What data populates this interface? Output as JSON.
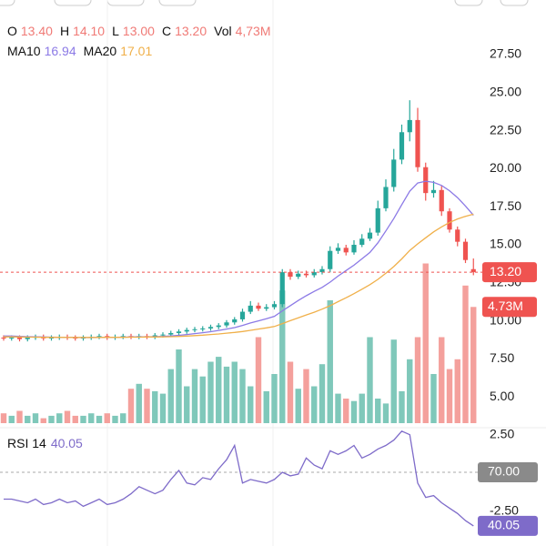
{
  "header": {
    "ohlc": [
      {
        "label": "O",
        "value": "13.40"
      },
      {
        "label": "H",
        "value": "14.10"
      },
      {
        "label": "L",
        "value": "13.00"
      },
      {
        "label": "C",
        "value": "13.20"
      },
      {
        "label": "Vol",
        "value": "4,73M"
      }
    ],
    "ma": [
      {
        "label": "MA10",
        "value": "16.94"
      },
      {
        "label": "MA20",
        "value": "17.01"
      }
    ],
    "rsi": {
      "label": "RSI 14",
      "value": "40.05"
    }
  },
  "chart_data": {
    "type": "candlestick",
    "open": [
      8.9,
      8.85,
      8.9,
      8.8,
      8.9,
      8.95,
      8.85,
      8.9,
      8.95,
      8.9,
      8.85,
      8.9,
      8.95,
      9.0,
      8.9,
      8.95,
      9.0,
      8.95,
      9.0,
      8.95,
      9.05,
      9.1,
      9.2,
      9.3,
      9.4,
      9.45,
      9.5,
      9.6,
      9.7,
      9.9,
      10.1,
      10.6,
      11.0,
      10.8,
      10.9,
      11.1,
      13.2,
      12.9,
      13.1,
      13.0,
      13.2,
      13.4,
      14.6,
      14.8,
      14.5,
      15.0,
      15.4,
      15.8,
      17.4,
      18.8,
      20.6,
      22.4,
      23.2,
      20.1,
      18.4,
      18.6,
      17.2,
      16.0,
      15.2,
      13.4
    ],
    "high": [
      9.05,
      9.05,
      9.05,
      9.05,
      9.1,
      9.1,
      9.05,
      9.1,
      9.1,
      9.05,
      9.05,
      9.1,
      9.15,
      9.15,
      9.1,
      9.15,
      9.15,
      9.15,
      9.15,
      9.2,
      9.25,
      9.35,
      9.45,
      9.55,
      9.6,
      9.65,
      9.75,
      9.85,
      10.05,
      10.25,
      10.8,
      11.3,
      11.2,
      11.1,
      11.3,
      13.4,
      13.4,
      13.3,
      13.3,
      13.4,
      13.6,
      14.9,
      15.1,
      15.0,
      15.3,
      15.7,
      16.1,
      17.9,
      19.3,
      21.3,
      22.9,
      24.5,
      24.0,
      20.4,
      19.2,
      18.9,
      17.4,
      16.2,
      15.4,
      14.1
    ],
    "low": [
      8.7,
      8.7,
      8.65,
      8.65,
      8.75,
      8.7,
      8.7,
      8.75,
      8.75,
      8.7,
      8.7,
      8.75,
      8.8,
      8.75,
      8.75,
      8.8,
      8.8,
      8.8,
      8.8,
      8.8,
      8.9,
      8.95,
      9.05,
      9.15,
      9.25,
      9.3,
      9.35,
      9.45,
      9.55,
      9.75,
      9.95,
      10.45,
      10.65,
      10.65,
      10.75,
      10.9,
      12.7,
      12.75,
      12.85,
      12.85,
      13.05,
      13.2,
      14.4,
      14.3,
      14.35,
      14.85,
      15.25,
      15.6,
      17.2,
      18.5,
      20.3,
      21.8,
      19.8,
      17.9,
      18.1,
      16.9,
      15.8,
      14.9,
      13.8,
      13.0
    ],
    "close": [
      8.85,
      8.9,
      8.8,
      8.9,
      8.95,
      8.85,
      8.9,
      8.95,
      8.9,
      8.85,
      8.9,
      8.95,
      9.0,
      8.9,
      8.95,
      9.0,
      8.95,
      9.0,
      8.95,
      9.05,
      9.1,
      9.2,
      9.3,
      9.4,
      9.45,
      9.5,
      9.6,
      9.7,
      9.9,
      10.1,
      10.6,
      11.0,
      10.8,
      10.9,
      11.1,
      13.2,
      12.9,
      13.1,
      13.0,
      13.2,
      13.4,
      14.6,
      14.8,
      14.5,
      15.0,
      15.4,
      15.8,
      17.4,
      18.8,
      20.6,
      22.4,
      23.2,
      20.1,
      18.4,
      18.6,
      17.2,
      16.0,
      15.2,
      14.0,
      13.2
    ],
    "up_color": "#26a69a",
    "down_color": "#ef5350",
    "ylim": [
      -2.5,
      27.5
    ],
    "yticks": [
      {
        "value": 27.5,
        "label": "27.50"
      },
      {
        "value": 25,
        "label": "25.00"
      },
      {
        "value": 22.5,
        "label": "22.50"
      },
      {
        "value": 20,
        "label": "20.00"
      },
      {
        "value": 17.5,
        "label": "17.50"
      },
      {
        "value": 15,
        "label": "15.00"
      },
      {
        "value": 12.5,
        "label": "12.50"
      },
      {
        "value": 10,
        "label": "10.00"
      },
      {
        "value": 7.5,
        "label": "7.50"
      },
      {
        "value": 5,
        "label": "5.00"
      },
      {
        "value": 2.5,
        "label": "2.50"
      },
      {
        "value": -2.5,
        "label": "-2.50"
      }
    ],
    "last_price": {
      "value": 13.2,
      "label": "13.20"
    },
    "volume": {
      "values": [
        0.4,
        0.3,
        0.5,
        0.3,
        0.4,
        0.2,
        0.3,
        0.4,
        0.5,
        0.3,
        0.3,
        0.4,
        0.3,
        0.4,
        0.3,
        0.4,
        1.4,
        1.6,
        1.4,
        1.3,
        1.2,
        2.2,
        3.0,
        1.5,
        2.2,
        1.9,
        2.5,
        2.7,
        2.3,
        2.5,
        2.2,
        1.5,
        3.5,
        1.3,
        2.0,
        5.4,
        2.5,
        1.4,
        2.2,
        1.5,
        2.4,
        5.0,
        1.2,
        1.0,
        0.9,
        1.2,
        3.5,
        1.0,
        0.8,
        3.4,
        1.3,
        2.6,
        3.5,
        6.5,
        2.0,
        3.5,
        2.2,
        2.6,
        5.6,
        4.73
      ],
      "ylim": [
        0,
        10
      ],
      "up_color": "#7fc8ba",
      "down_color": "#f4a09c",
      "last": {
        "value": 4.73,
        "label": "4.73M"
      }
    },
    "ma": [
      {
        "color": "#8c7ae6",
        "values": [
          9.0,
          9.0,
          8.98,
          8.96,
          8.95,
          8.94,
          8.93,
          8.92,
          8.92,
          8.91,
          8.9,
          8.9,
          8.91,
          8.92,
          8.92,
          8.93,
          8.94,
          8.95,
          8.95,
          8.96,
          8.98,
          9.01,
          9.05,
          9.1,
          9.16,
          9.22,
          9.29,
          9.37,
          9.46,
          9.56,
          9.7,
          9.86,
          10.0,
          10.14,
          10.3,
          10.66,
          11.0,
          11.34,
          11.65,
          11.94,
          12.2,
          12.55,
          12.94,
          13.31,
          13.66,
          14.08,
          14.5,
          15.13,
          15.91,
          16.73,
          17.64,
          18.53,
          19.06,
          19.18,
          19.1,
          18.9,
          18.55,
          18.1,
          17.55,
          16.94
        ]
      },
      {
        "color": "#f0b04a",
        "values": [
          8.95,
          8.95,
          8.94,
          8.93,
          8.93,
          8.92,
          8.92,
          8.92,
          8.91,
          8.91,
          8.91,
          8.91,
          8.91,
          8.92,
          8.92,
          8.92,
          8.93,
          8.93,
          8.94,
          8.94,
          8.95,
          8.96,
          8.98,
          9.0,
          9.03,
          9.06,
          9.1,
          9.14,
          9.19,
          9.24,
          9.3,
          9.38,
          9.46,
          9.54,
          9.63,
          9.82,
          10.01,
          10.2,
          10.39,
          10.57,
          10.77,
          11.0,
          11.26,
          11.52,
          11.79,
          12.08,
          12.38,
          12.73,
          13.13,
          13.57,
          14.07,
          14.63,
          15.06,
          15.46,
          15.85,
          16.18,
          16.47,
          16.7,
          16.87,
          17.01
        ]
      }
    ],
    "rsi": {
      "values": [
        55,
        55,
        54,
        53,
        55,
        52,
        53,
        55,
        53,
        54,
        51,
        53,
        55,
        52,
        53,
        55,
        58,
        62,
        60,
        58,
        60,
        66,
        71,
        64,
        63,
        67,
        66,
        72,
        77,
        85,
        64,
        66,
        65,
        64,
        66,
        70,
        68,
        69,
        78,
        74,
        72,
        82,
        80,
        82,
        85,
        78,
        80,
        83,
        85,
        88,
        93,
        91,
        64,
        56,
        57,
        53,
        50,
        47,
        43,
        40.05
      ],
      "color": "#7e6bc9",
      "ylim": [
        30,
        100
      ],
      "level": {
        "value": 70,
        "label": "70.00"
      },
      "last": {
        "value": 40.05,
        "label": "40.05"
      }
    }
  }
}
